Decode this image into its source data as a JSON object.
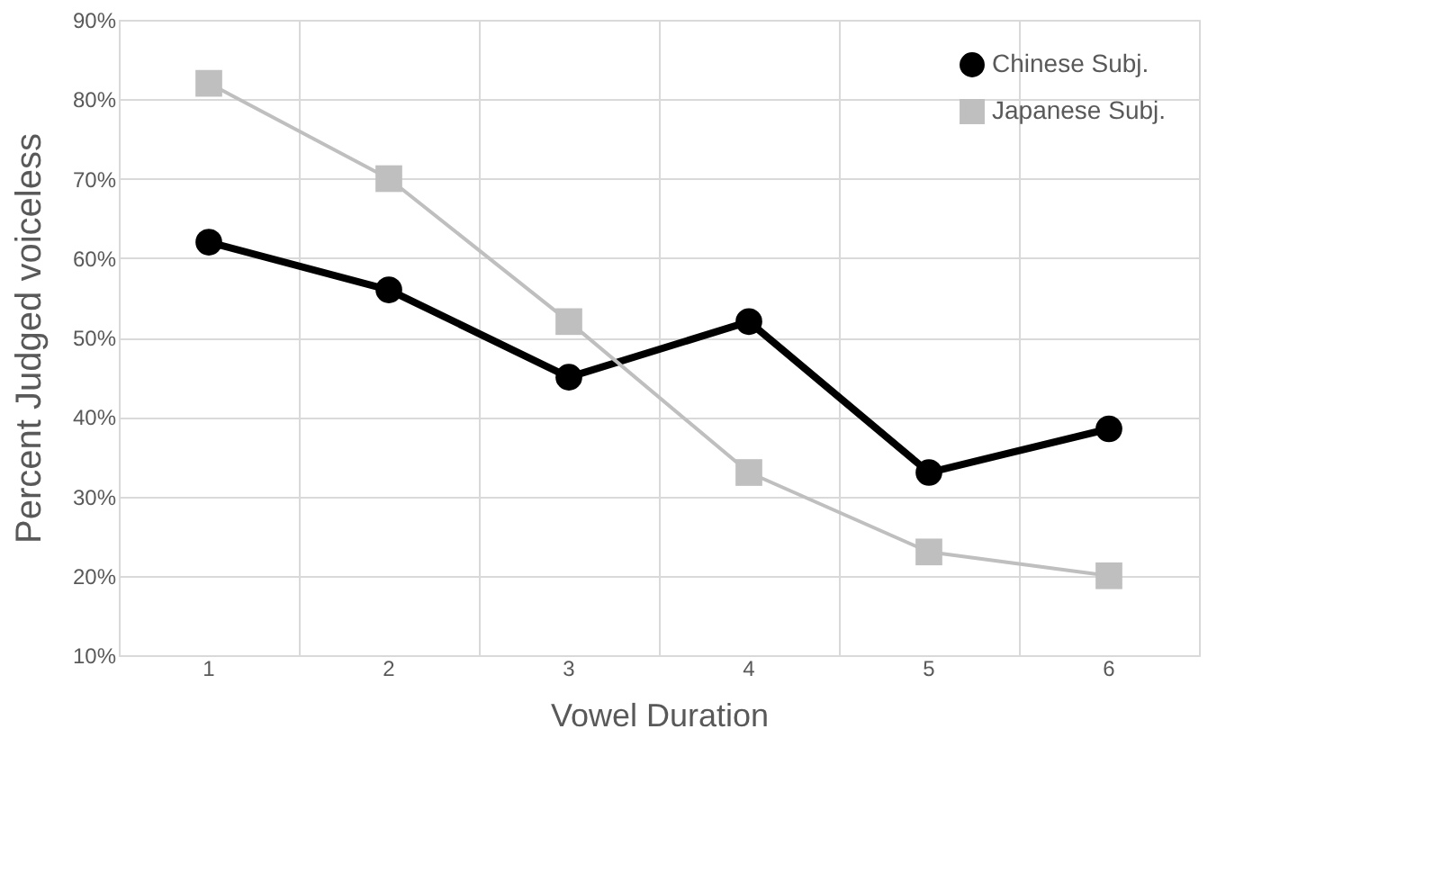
{
  "chart_data": {
    "type": "line",
    "xlabel": "Vowel Duration",
    "ylabel": "Percent Judged voiceless",
    "categories": [
      "1",
      "2",
      "3",
      "4",
      "5",
      "6"
    ],
    "series": [
      {
        "name": "Chinese Subj.",
        "color": "#000000",
        "marker": "circle",
        "values": [
          62,
          56,
          45,
          52,
          33,
          38.5
        ]
      },
      {
        "name": "Japanese Subj.",
        "color": "#bfbfbf",
        "marker": "square",
        "values": [
          82,
          70,
          52,
          33,
          23,
          20
        ]
      }
    ],
    "ylim": [
      10,
      90
    ],
    "yticks": [
      {
        "value": 10,
        "label": "10%"
      },
      {
        "value": 20,
        "label": "20%"
      },
      {
        "value": 30,
        "label": "30%"
      },
      {
        "value": 40,
        "label": "40%"
      },
      {
        "value": 50,
        "label": "50%"
      },
      {
        "value": 60,
        "label": "60%"
      },
      {
        "value": 70,
        "label": "70%"
      },
      {
        "value": 80,
        "label": "80%"
      },
      {
        "value": 90,
        "label": "90%"
      }
    ],
    "grid": true,
    "legend": "top right",
    "line_style": "solid"
  }
}
